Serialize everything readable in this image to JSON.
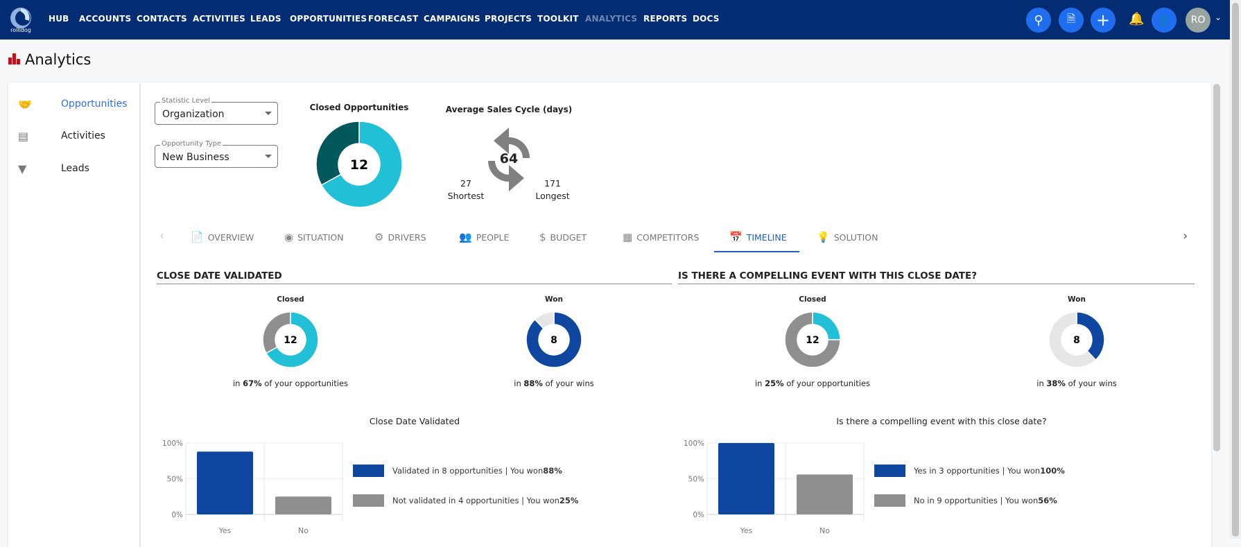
{
  "nav": {
    "logo_text": "rollidog",
    "items": [
      "HUB",
      "ACCOUNTS",
      "CONTACTS",
      "ACTIVITIES",
      "LEADS",
      "OPPORTUNITIES",
      "FORECAST",
      "CAMPAIGNS",
      "PROJECTS",
      "TOOLKIT",
      "ANALYTICS",
      "REPORTS",
      "DOCS"
    ],
    "active": "ANALYTICS",
    "avatar": "RO"
  },
  "page": {
    "title": "Analytics"
  },
  "sidebar": {
    "items": [
      {
        "label": "Opportunities",
        "icon": "handshake-icon",
        "active": true
      },
      {
        "label": "Activities",
        "icon": "list-icon"
      },
      {
        "label": "Leads",
        "icon": "funnel-icon"
      }
    ]
  },
  "filters": {
    "statistic_level": {
      "label": "Statistic Level",
      "value": "Organization"
    },
    "opportunity_type": {
      "label": "Opportunity Type",
      "value": "New Business"
    }
  },
  "closed_opportunities": {
    "title": "Closed Opportunities",
    "total": "12",
    "fraction_light": 0.67,
    "colors": [
      "#22c0d6",
      "#02585a"
    ]
  },
  "sales_cycle": {
    "title": "Average Sales Cycle (days)",
    "average": "64",
    "shortest": "27",
    "shortest_label": "Shortest",
    "longest": "171",
    "longest_label": "Longest"
  },
  "tabs": [
    "OVERVIEW",
    "SITUATION",
    "DRIVERS",
    "PEOPLE",
    "BUDGET",
    "COMPETITORS",
    "TIMELINE",
    "SOLUTION"
  ],
  "active_tab": "TIMELINE",
  "sections": [
    {
      "heading": "CLOSE DATE VALIDATED",
      "donuts": [
        {
          "label": "Closed",
          "center": "12",
          "pct": "67%",
          "fraction": 0.67,
          "prefix": "in ",
          "suffix": " of your opportunities",
          "color": "#22c0d6",
          "rest": "#8f8f8f"
        },
        {
          "label": "Won",
          "center": "8",
          "pct": "88%",
          "fraction": 0.88,
          "prefix": "in ",
          "suffix": " of your wins",
          "color": "#0f46a0",
          "rest": "#e6e6e6"
        }
      ],
      "chart_data": {
        "type": "bar",
        "title": "Close Date Validated",
        "categories": [
          "Yes",
          "No"
        ],
        "values": [
          88,
          25
        ],
        "ylim": [
          0,
          100
        ],
        "yticks": [
          "0%",
          "50%",
          "100%"
        ],
        "colors": [
          "#0f46a0",
          "#8f8f8f"
        ],
        "legend": [
          {
            "text": "Validated in 8 opportunities | You won ",
            "bold": "88%"
          },
          {
            "text": "Not validated in 4 opportunities | You won ",
            "bold": "25%"
          }
        ]
      }
    },
    {
      "heading": "IS THERE A COMPELLING EVENT WITH THIS CLOSE DATE?",
      "donuts": [
        {
          "label": "Closed",
          "center": "12",
          "pct": "25%",
          "fraction": 0.25,
          "prefix": "in ",
          "suffix": " of your opportunities",
          "color": "#22c0d6",
          "rest": "#8f8f8f"
        },
        {
          "label": "Won",
          "center": "8",
          "pct": "38%",
          "fraction": 0.38,
          "prefix": "in ",
          "suffix": " of your wins",
          "color": "#0f46a0",
          "rest": "#e6e6e6"
        }
      ],
      "chart_data": {
        "type": "bar",
        "title": "Is there a compelling event with this close date?",
        "categories": [
          "Yes",
          "No"
        ],
        "values": [
          100,
          56
        ],
        "ylim": [
          0,
          100
        ],
        "yticks": [
          "0%",
          "50%",
          "100%"
        ],
        "colors": [
          "#0f46a0",
          "#8f8f8f"
        ],
        "legend": [
          {
            "text": "Yes in 3 opportunities | You won ",
            "bold": "100%"
          },
          {
            "text": "No in 9 opportunities | You won ",
            "bold": "56%"
          }
        ]
      }
    }
  ]
}
